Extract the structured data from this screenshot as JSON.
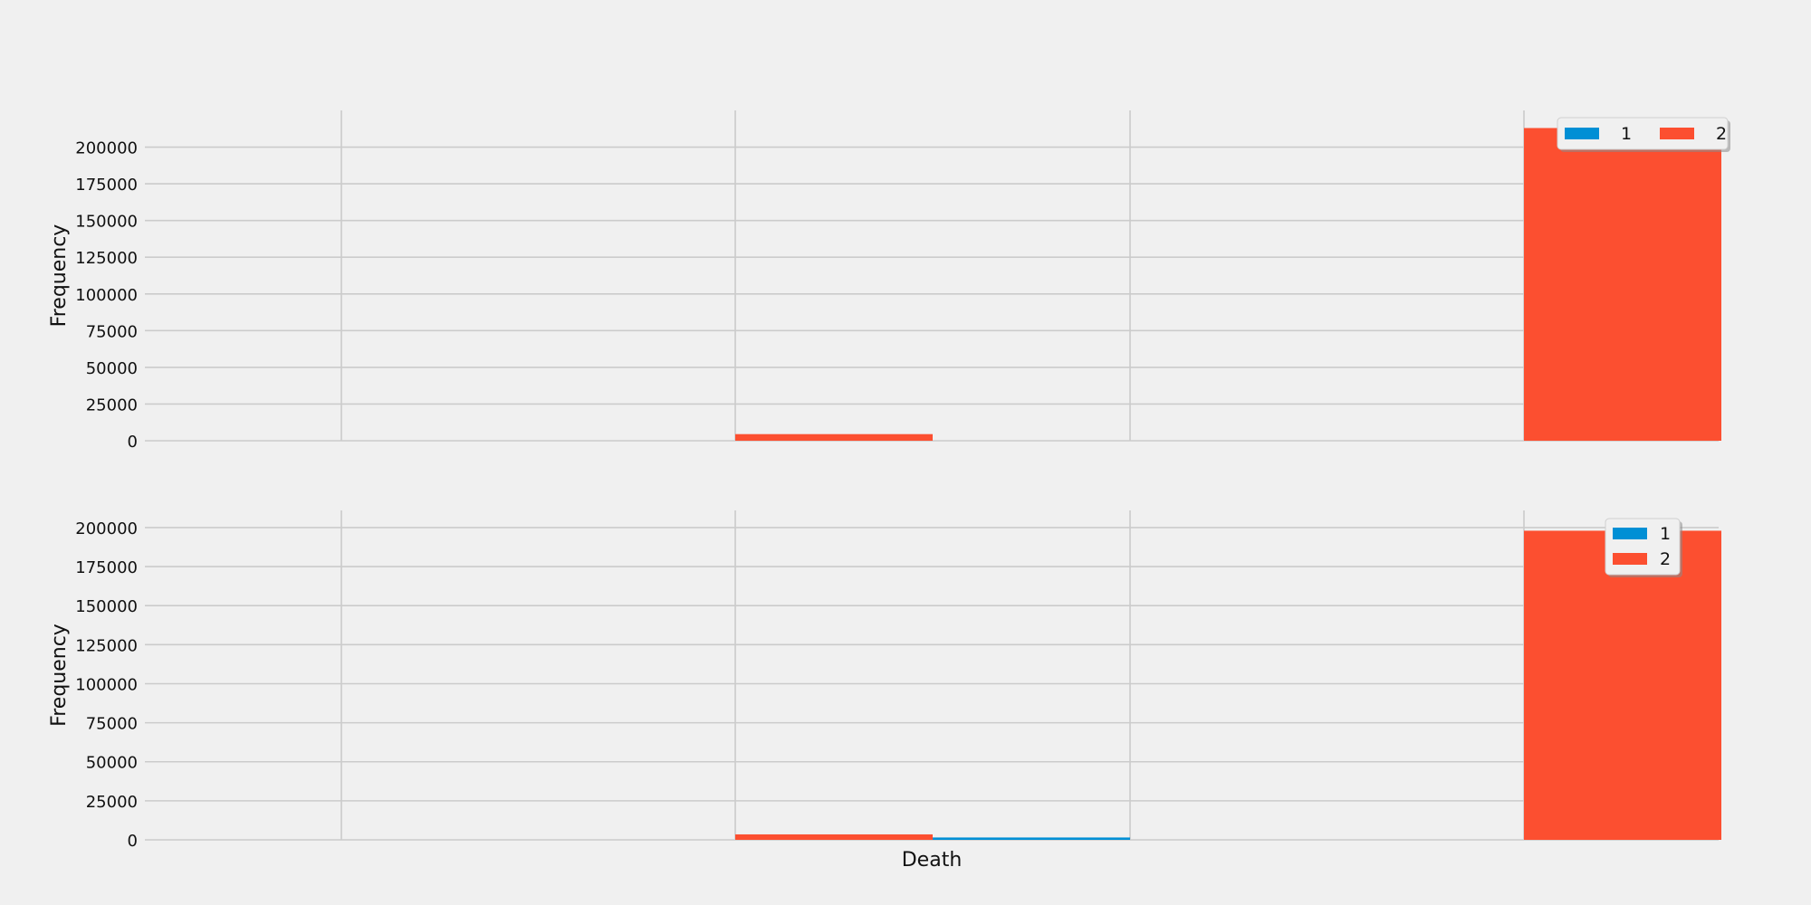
{
  "chart_data": [
    {
      "type": "bar",
      "title": "",
      "xlabel": "",
      "ylabel": "Frequency",
      "categories": [
        "",
        "",
        "",
        ""
      ],
      "ylim": [
        0,
        225000
      ],
      "yticks": [
        0,
        25000,
        50000,
        75000,
        100000,
        125000,
        150000,
        175000,
        200000
      ],
      "legend": {
        "placement": "top-right",
        "columns": 2
      },
      "series": [
        {
          "name": "1",
          "color": "#008fd5",
          "values": [
            0,
            0,
            0,
            0
          ]
        },
        {
          "name": "2",
          "color": "#fc4f30",
          "values": [
            0,
            4500,
            0,
            213000
          ]
        }
      ]
    },
    {
      "type": "bar",
      "title": "",
      "xlabel": "Death",
      "ylabel": "Frequency",
      "categories": [
        "",
        "",
        "",
        ""
      ],
      "ylim": [
        0,
        211000
      ],
      "yticks": [
        0,
        25000,
        50000,
        75000,
        100000,
        125000,
        150000,
        175000,
        200000
      ],
      "legend": {
        "placement": "top-right",
        "columns": 1
      },
      "series": [
        {
          "name": "1",
          "color": "#008fd5",
          "values": [
            0,
            0,
            1500,
            0
          ]
        },
        {
          "name": "2",
          "color": "#fc4f30",
          "values": [
            0,
            3500,
            0,
            198000
          ]
        }
      ]
    }
  ]
}
